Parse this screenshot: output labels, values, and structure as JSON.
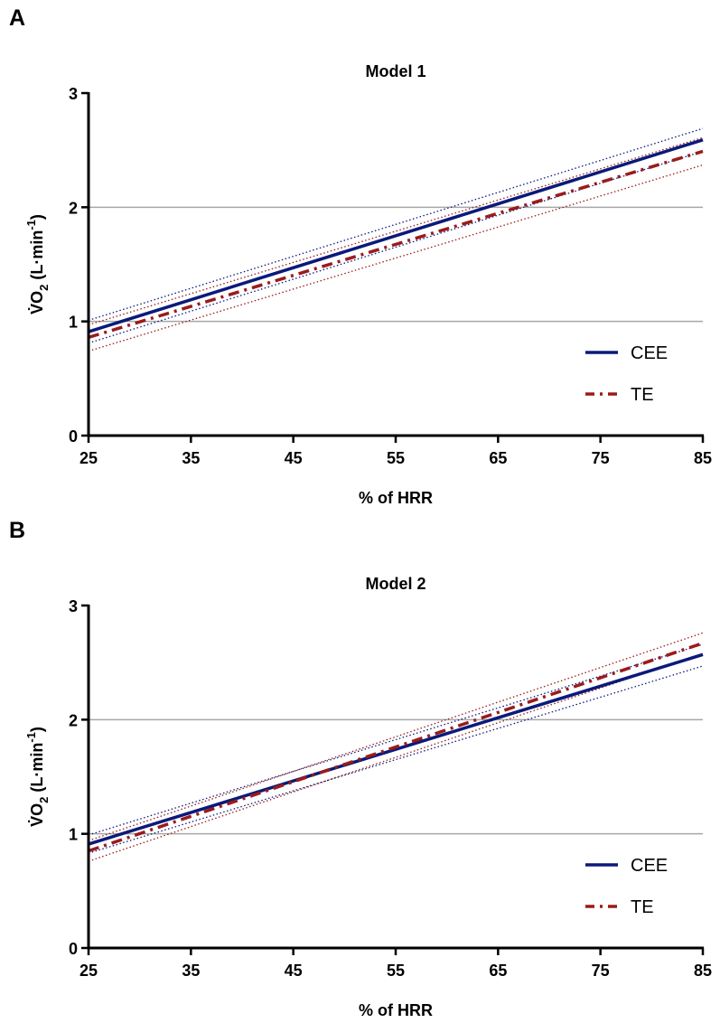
{
  "colors": {
    "cee": "#0a1a7a",
    "te": "#9b1b1b",
    "grid": "#a6a6a6",
    "axis": "#000000"
  },
  "chart_data": [
    {
      "panel_label": "A",
      "type": "line",
      "title": "Model 1",
      "xlabel": "% of HRR",
      "ylabel": "V̇O2 (L·min-1)",
      "ylabel_main": "V̇O",
      "ylabel_sub": "2",
      "ylabel_rest": " (L·min",
      "ylabel_sup": "-1",
      "ylabel_close": ")",
      "xlim": [
        25,
        85
      ],
      "ylim": [
        0,
        3
      ],
      "xticks": [
        "25",
        "35",
        "45",
        "55",
        "65",
        "75",
        "85"
      ],
      "yticks": [
        "0",
        "1",
        "2",
        "3"
      ],
      "grid": "horizontal at 1 and 2",
      "legend_position": "bottom-right",
      "series": [
        {
          "name": "CEE",
          "x": [
            25,
            85
          ],
          "y": [
            0.91,
            2.59
          ],
          "ci_lower": [
            0.81,
            2.49
          ],
          "ci_upper": [
            1.01,
            2.69
          ]
        },
        {
          "name": "TE",
          "x": [
            25,
            85
          ],
          "y": [
            0.86,
            2.49
          ],
          "ci_lower": [
            0.74,
            2.37
          ],
          "ci_upper": [
            0.97,
            2.61
          ]
        }
      ]
    },
    {
      "panel_label": "B",
      "type": "line",
      "title": "Model 2",
      "xlabel": "% of HRR",
      "ylabel": "V̇O2 (L·min-1)",
      "ylabel_main": "V̇O",
      "ylabel_sub": "2",
      "ylabel_rest": " (L·min",
      "ylabel_sup": "-1",
      "ylabel_close": ")",
      "xlim": [
        25,
        85
      ],
      "ylim": [
        0,
        3
      ],
      "xticks": [
        "25",
        "35",
        "45",
        "55",
        "65",
        "75",
        "85"
      ],
      "yticks": [
        "0",
        "1",
        "2",
        "3"
      ],
      "grid": "horizontal at 1 and 2",
      "legend_position": "bottom-right",
      "series": [
        {
          "name": "CEE",
          "x": [
            25,
            85
          ],
          "y": [
            0.91,
            2.57
          ],
          "ci_lower": [
            0.83,
            2.47
          ],
          "ci_upper": [
            0.99,
            2.66
          ]
        },
        {
          "name": "TE",
          "x": [
            25,
            85
          ],
          "y": [
            0.85,
            2.67
          ],
          "ci_lower": [
            0.76,
            2.58
          ],
          "ci_upper": [
            0.94,
            2.76
          ]
        }
      ]
    }
  ]
}
